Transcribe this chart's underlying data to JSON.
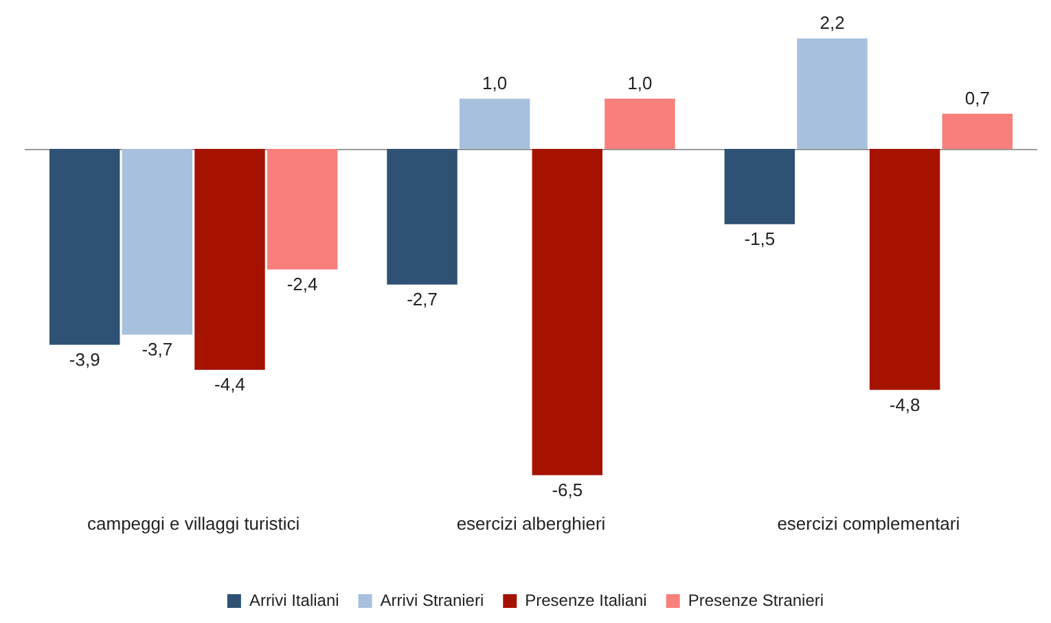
{
  "chart_data": {
    "type": "bar",
    "categories": [
      "campeggi e villaggi turistici",
      "esercizi alberghieri",
      "esercizi complementari"
    ],
    "series": [
      {
        "name": "Arrivi Italiani",
        "color": "#2f5173",
        "values": [
          -3.9,
          -2.7,
          -1.5
        ],
        "value_labels": [
          "-3,9",
          "-2,7",
          "-1,5"
        ]
      },
      {
        "name": "Arrivi Stranieri",
        "color": "#a7c0de",
        "values": [
          -3.7,
          1.0,
          2.2
        ],
        "value_labels": [
          "-3,7",
          "1,0",
          "2,2"
        ]
      },
      {
        "name": "Presenze Italiani",
        "color": "#a51300",
        "values": [
          -4.4,
          -6.5,
          -4.8
        ],
        "value_labels": [
          "-4,4",
          "-6,5",
          "-4,8"
        ]
      },
      {
        "name": "Presenze Stranieri",
        "color": "#f97f7b",
        "values": [
          -2.4,
          1.0,
          0.7
        ],
        "value_labels": [
          "-2,4",
          "1,0",
          "0,7"
        ]
      }
    ],
    "grid": false,
    "legend": "bottom"
  }
}
